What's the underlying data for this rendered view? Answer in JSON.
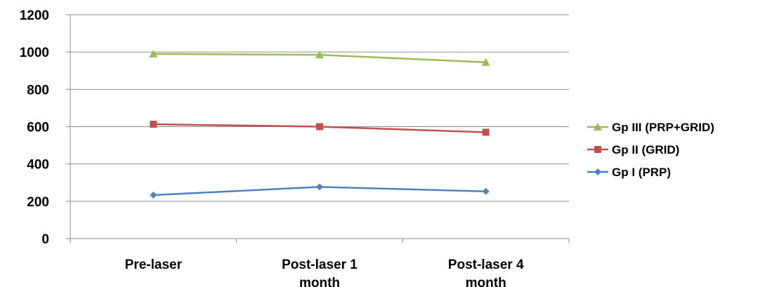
{
  "chart_data": {
    "type": "line",
    "categories": [
      [
        "Pre-laser"
      ],
      [
        "Post-laser 1",
        "month"
      ],
      [
        "Post-laser 4",
        "month"
      ]
    ],
    "ylim": [
      0,
      1200
    ],
    "yticks": [
      "0",
      "200",
      "400",
      "600",
      "800",
      "1000",
      "1200"
    ],
    "grid": true,
    "legend_position": "right",
    "series": [
      {
        "name": "Gp I (PRP)",
        "values": [
          233,
          277,
          253
        ],
        "color": "#4f81bd",
        "marker": "diamond"
      },
      {
        "name": "Gp II (GRID)",
        "values": [
          613,
          600,
          570
        ],
        "color": "#c0504d",
        "marker": "square"
      },
      {
        "name": "Gp III (PRP+GRID)",
        "values": [
          990,
          985,
          945
        ],
        "color": "#9bbb59",
        "marker": "triangle"
      }
    ],
    "legend_order": [
      2,
      1,
      0
    ]
  }
}
